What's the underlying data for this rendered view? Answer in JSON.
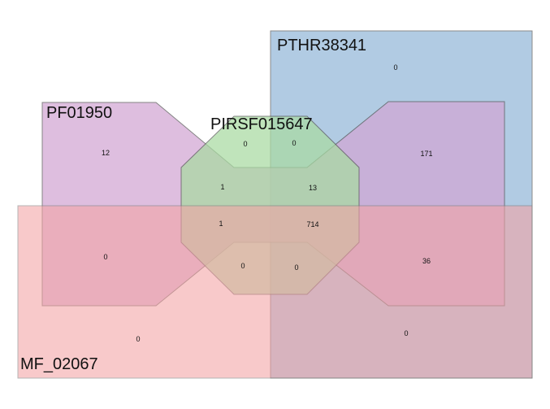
{
  "sets": [
    {
      "id": "pthr",
      "label": "PTHR38341",
      "color": "#a9c6e0"
    },
    {
      "id": "pf",
      "label": "PF01950",
      "color": "#d2a6d4"
    },
    {
      "id": "pirsf",
      "label": "PIRSF015647",
      "color": "#a9dba2"
    },
    {
      "id": "mf",
      "label": "MF_02067",
      "color": "#f3a3a4"
    }
  ],
  "regions": [
    {
      "sets": [
        "PTHR38341"
      ],
      "count": "0"
    },
    {
      "sets": [
        "PF01950"
      ],
      "count": "12"
    },
    {
      "sets": [
        "PIRSF015647"
      ],
      "count": "0"
    },
    {
      "sets": [
        "PIRSF015647",
        "PTHR38341"
      ],
      "count": "0"
    },
    {
      "sets": [
        "PTHR38341",
        "PF01950"
      ],
      "count": "171"
    },
    {
      "sets": [
        "PF01950",
        "PIRSF015647"
      ],
      "count": "1"
    },
    {
      "sets": [
        "PTHR38341",
        "PF01950",
        "PIRSF015647"
      ],
      "count": "13"
    },
    {
      "sets": [
        "PF01950",
        "PIRSF015647",
        "MF_02067"
      ],
      "count": "1"
    },
    {
      "sets": [
        "PTHR38341",
        "PF01950",
        "PIRSF015647",
        "MF_02067"
      ],
      "count": "714"
    },
    {
      "sets": [
        "PF01950",
        "MF_02067"
      ],
      "count": "0"
    },
    {
      "sets": [
        "PTHR38341",
        "PF01950",
        "MF_02067"
      ],
      "count": "36"
    },
    {
      "sets": [
        "PIRSF015647",
        "MF_02067"
      ],
      "count": "0"
    },
    {
      "sets": [
        "PTHR38341",
        "PIRSF015647",
        "MF_02067"
      ],
      "count": "0"
    },
    {
      "sets": [
        "MF_02067"
      ],
      "count": "0"
    },
    {
      "sets": [
        "PTHR38341",
        "MF_02067"
      ],
      "count": "0"
    }
  ]
}
